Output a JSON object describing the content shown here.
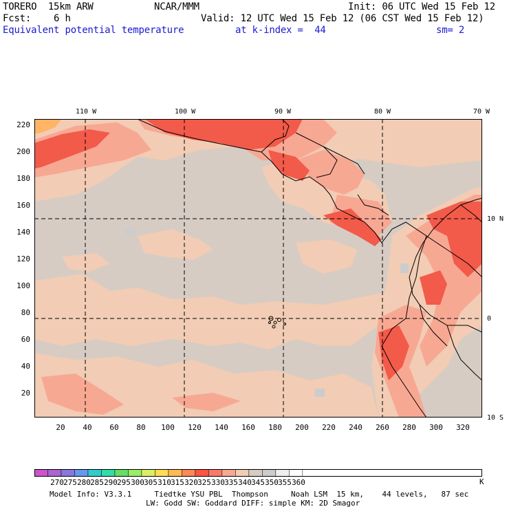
{
  "header": {
    "model": "TORERO  15km ARW",
    "center": "NCAR/MMM",
    "init": "Init: 06 UTC Wed 15 Feb 12",
    "fcst": "Fcst:    6 h",
    "valid": "Valid: 12 UTC Wed 15 Feb 12 (06 CST Wed 15 Feb 12)",
    "field": "Equivalent potential temperature",
    "level": "at k-index =  44",
    "smooth": "sm= 2"
  },
  "map": {
    "lon_labels": [
      "110 W",
      "100 W",
      "90 W",
      "80 W",
      "70 W"
    ],
    "lat_labels": [
      "10 N",
      "0",
      "10 S"
    ],
    "y_ticks": [
      "220",
      "200",
      "180",
      "160",
      "140",
      "120",
      "100",
      "80",
      "60",
      "40",
      "20"
    ],
    "x_ticks": [
      "20",
      "40",
      "60",
      "80",
      "100",
      "120",
      "140",
      "160",
      "180",
      "200",
      "220",
      "240",
      "260",
      "280",
      "300",
      "320"
    ]
  },
  "colorbar": {
    "labels": [
      "270",
      "275",
      "280",
      "285",
      "290",
      "295",
      "300",
      "305",
      "310",
      "315",
      "320",
      "325",
      "330",
      "335",
      "340",
      "345",
      "350",
      "355",
      "360"
    ],
    "unit": "K",
    "colors": [
      "#cc55cc",
      "#aa66cc",
      "#8877dd",
      "#6699ee",
      "#33cccc",
      "#33ddaa",
      "#66dd66",
      "#99ee66",
      "#ddee66",
      "#ffdd55",
      "#ffbb55",
      "#ff8855",
      "#ff5544",
      "#f87a6a",
      "#f7a893",
      "#f2ccb4",
      "#d6ccc4",
      "#cccccc",
      "#eeeeee",
      "#ffffff"
    ]
  },
  "footer": {
    "line1": "Model Info: V3.3.1     Tiedtke YSU PBL  Thompson     Noah LSM  15 km,    44 levels,   87 sec",
    "line2": "LW: Godd SW: Goddard DIFF: simple KM: 2D Smagor"
  }
}
